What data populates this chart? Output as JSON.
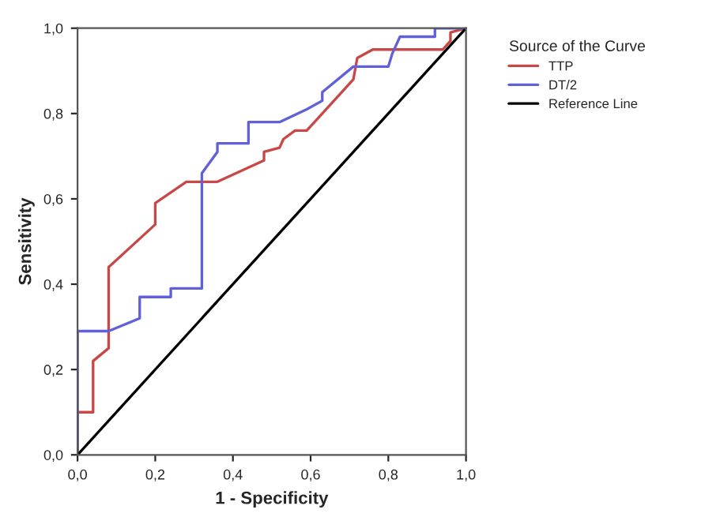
{
  "chart_data": {
    "type": "line",
    "xlabel": "1 - Specificity",
    "ylabel": "Sensitivity",
    "legend_title": "Source of the Curve",
    "legend": "right",
    "xlim": [
      0,
      1
    ],
    "ylim": [
      0,
      1
    ],
    "xticks": [
      {
        "value": 0,
        "label": "0,0"
      },
      {
        "value": 0.2,
        "label": "0,2"
      },
      {
        "value": 0.4,
        "label": "0,4"
      },
      {
        "value": 0.6,
        "label": "0,6"
      },
      {
        "value": 0.8,
        "label": "0,8"
      },
      {
        "value": 1,
        "label": "1,0"
      }
    ],
    "yticks": [
      {
        "value": 0,
        "label": "0,0"
      },
      {
        "value": 0.2,
        "label": "0,2"
      },
      {
        "value": 0.4,
        "label": "0,4"
      },
      {
        "value": 0.6,
        "label": "0,6"
      },
      {
        "value": 0.8,
        "label": "0,8"
      },
      {
        "value": 1,
        "label": "1,0"
      }
    ],
    "grid": false,
    "series": [
      {
        "name": "TTP",
        "color": "#c84848",
        "x": [
          0,
          0,
          0.04,
          0.04,
          0.08,
          0.08,
          0.08,
          0.2,
          0.2,
          0.28,
          0.36,
          0.48,
          0.48,
          0.52,
          0.53,
          0.56,
          0.59,
          0.61,
          0.71,
          0.72,
          0.76,
          0.94,
          0.96,
          0.96,
          1
        ],
        "values": [
          0,
          0.1,
          0.1,
          0.22,
          0.25,
          0.25,
          0.44,
          0.54,
          0.59,
          0.64,
          0.64,
          0.69,
          0.71,
          0.72,
          0.74,
          0.76,
          0.76,
          0.78,
          0.88,
          0.93,
          0.95,
          0.95,
          0.97,
          0.99,
          1
        ]
      },
      {
        "name": "DT/2",
        "color": "#6060d8",
        "x": [
          0,
          0,
          0.08,
          0.16,
          0.16,
          0.24,
          0.24,
          0.32,
          0.32,
          0.36,
          0.36,
          0.44,
          0.44,
          0.52,
          0.59,
          0.63,
          0.63,
          0.71,
          0.8,
          0.81,
          0.83,
          0.92,
          0.92,
          1
        ],
        "values": [
          0,
          0.29,
          0.29,
          0.32,
          0.37,
          0.37,
          0.39,
          0.39,
          0.66,
          0.71,
          0.73,
          0.73,
          0.78,
          0.78,
          0.81,
          0.83,
          0.85,
          0.91,
          0.91,
          0.94,
          0.98,
          0.98,
          1,
          1
        ]
      },
      {
        "name": "Reference Line",
        "color": "#000000",
        "x": [
          0,
          1
        ],
        "values": [
          0,
          1
        ]
      }
    ]
  }
}
